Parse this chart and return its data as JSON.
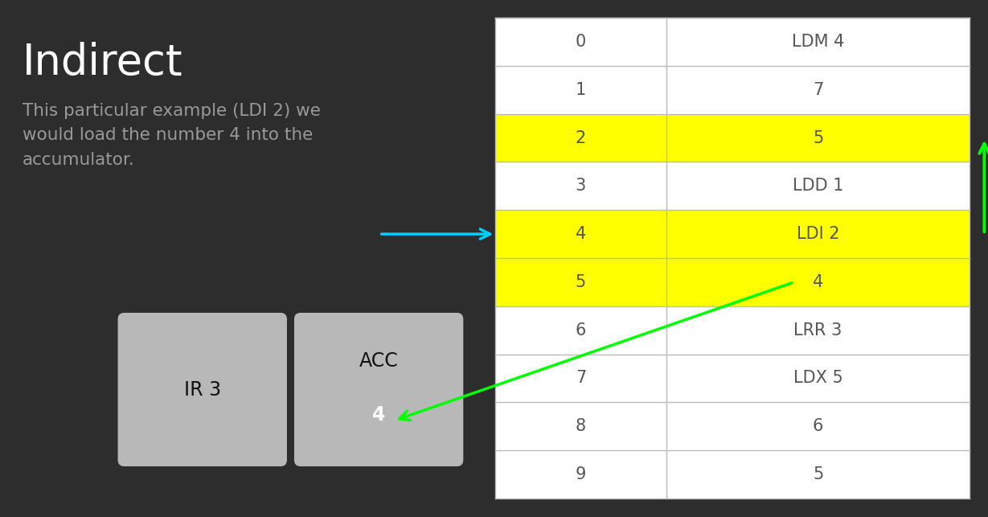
{
  "title": "Indirect",
  "subtitle_lines": [
    "This particular example (LDI 2) we",
    "would load the number 4 into the",
    "accumulator."
  ],
  "bg_color": "#2d2d2d",
  "title_color": "#ffffff",
  "subtitle_color": "#999999",
  "rows": [
    {
      "addr": "0",
      "content": "LDM 4",
      "highlight": false
    },
    {
      "addr": "1",
      "content": "7",
      "highlight": false
    },
    {
      "addr": "2",
      "content": "5",
      "highlight": true
    },
    {
      "addr": "3",
      "content": "LDD 1",
      "highlight": false
    },
    {
      "addr": "4",
      "content": "LDI 2",
      "highlight": true
    },
    {
      "addr": "5",
      "content": "4",
      "highlight": true
    },
    {
      "addr": "6",
      "content": "LRR 3",
      "highlight": false
    },
    {
      "addr": "7",
      "content": "LDX 5",
      "highlight": false
    },
    {
      "addr": "8",
      "content": "6",
      "highlight": false
    },
    {
      "addr": "9",
      "content": "5",
      "highlight": false
    }
  ],
  "highlight_color": "#ffff00",
  "table_bg": "#ffffff",
  "table_line_color": "#bbbbbb",
  "ir_label": "IR 3",
  "acc_label": "ACC",
  "acc_value": "4",
  "register_bg": "#b8b8b8",
  "register_fg": "#111111",
  "acc_value_color": "#ffffff",
  "cyan_color": "#00cfff",
  "green_color": "#00ff00",
  "text_dark": "#555544",
  "text_normal": "#555555"
}
